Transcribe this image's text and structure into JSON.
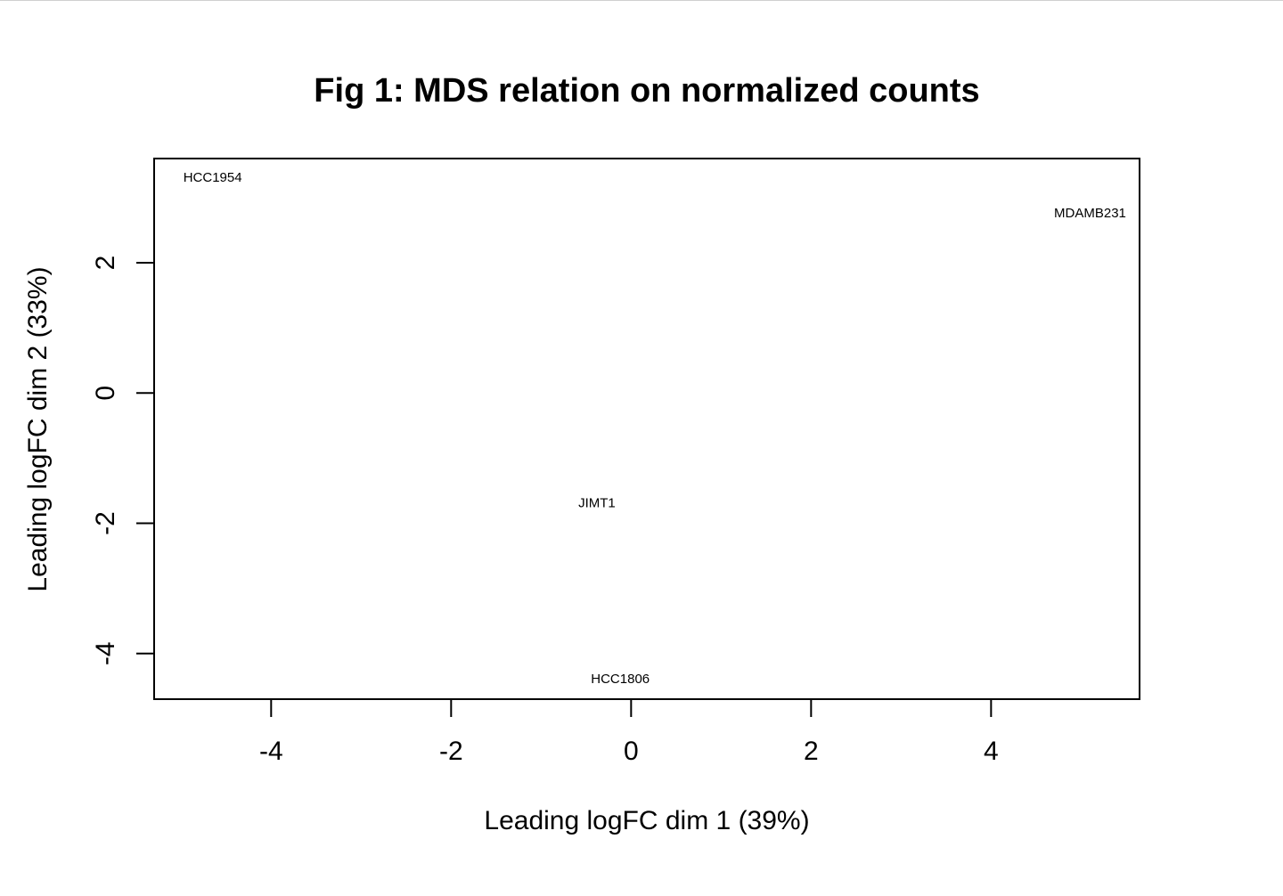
{
  "chart_data": {
    "type": "scatter",
    "title": "Fig 1: MDS relation on normalized counts",
    "xlabel": "Leading logFC dim 1 (39%)",
    "ylabel": "Leading logFC dim 2 (33%)",
    "xlim": [
      -5.3,
      5.65
    ],
    "ylim": [
      -4.7,
      3.6
    ],
    "xticks": [
      -4,
      -2,
      0,
      2,
      4
    ],
    "yticks": [
      -4,
      -2,
      0,
      2
    ],
    "grid": false,
    "legend": "none",
    "points": [
      {
        "label": "HCC1954",
        "x": -4.65,
        "y": 3.3
      },
      {
        "label": "MDAMB231",
        "x": 5.1,
        "y": 2.75
      },
      {
        "label": "JIMT1",
        "x": -0.38,
        "y": -1.7
      },
      {
        "label": "HCC1806",
        "x": -0.12,
        "y": -4.4
      }
    ]
  }
}
